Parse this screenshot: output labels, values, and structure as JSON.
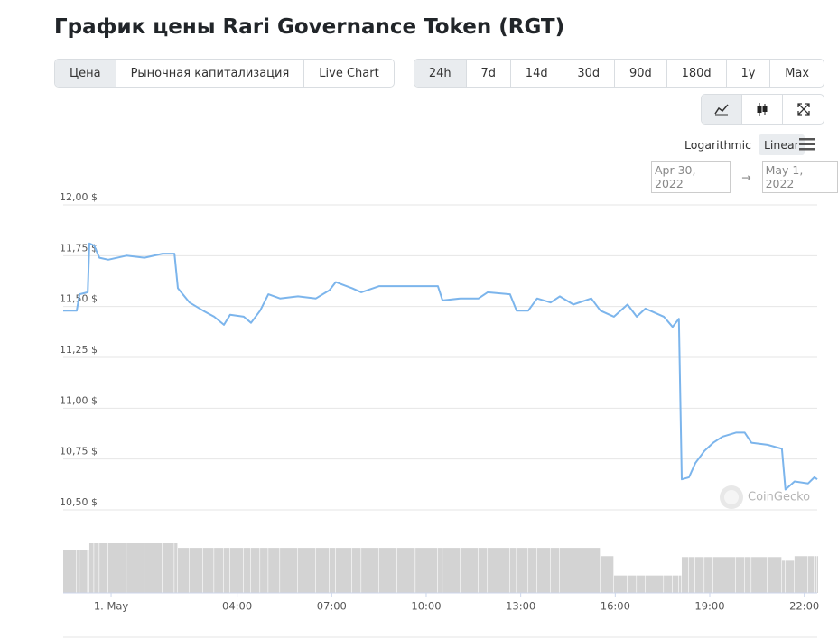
{
  "title": "График цены Rari Governance Token (RGT)",
  "tabs": [
    "Цена",
    "Рыночная капитализация",
    "Live Chart"
  ],
  "ranges": [
    "24h",
    "7d",
    "14d",
    "30d",
    "90d",
    "180d",
    "1y",
    "Max"
  ],
  "scale_options": [
    "Logarithmic",
    "Linear"
  ],
  "date_range": {
    "from": "Apr 30, 2022",
    "separator": "→",
    "to": "May 1, 2022"
  },
  "watermark": "CoinGecko",
  "chart_data": {
    "type": "line",
    "x": [
      -1.52,
      -1.09,
      -1.0,
      -0.74,
      -0.69,
      -0.54,
      -0.37,
      -0.09,
      0.49,
      1.06,
      1.63,
      2.01,
      2.12,
      2.49,
      2.92,
      3.27,
      3.58,
      3.78,
      4.21,
      4.44,
      4.73,
      4.99,
      5.36,
      5.93,
      6.5,
      6.93,
      7.13,
      7.65,
      7.94,
      8.51,
      9.08,
      9.66,
      10.37,
      10.52,
      11.09,
      11.66,
      11.95,
      12.66,
      12.87,
      13.24,
      13.52,
      13.95,
      14.24,
      14.67,
      15.24,
      15.53,
      15.96,
      16.39,
      16.68,
      16.96,
      17.54,
      17.82,
      18.02,
      18.11,
      18.34,
      18.54,
      18.83,
      19.11,
      19.4,
      19.83,
      20.11,
      20.32,
      20.83,
      21.29,
      21.4,
      21.69,
      22.12,
      22.32,
      22.41
    ],
    "values": [
      11.48,
      11.48,
      11.56,
      11.57,
      11.81,
      11.8,
      11.74,
      11.73,
      11.75,
      11.74,
      11.76,
      11.76,
      11.59,
      11.52,
      11.48,
      11.45,
      11.41,
      11.46,
      11.45,
      11.42,
      11.48,
      11.56,
      11.54,
      11.55,
      11.54,
      11.58,
      11.62,
      11.59,
      11.57,
      11.6,
      11.6,
      11.6,
      11.6,
      11.53,
      11.54,
      11.54,
      11.57,
      11.56,
      11.48,
      11.48,
      11.54,
      11.52,
      11.55,
      11.51,
      11.54,
      11.48,
      11.45,
      11.51,
      11.45,
      11.49,
      11.45,
      11.4,
      11.44,
      10.65,
      10.66,
      10.73,
      10.79,
      10.83,
      10.86,
      10.88,
      10.88,
      10.83,
      10.82,
      10.8,
      10.6,
      10.64,
      10.63,
      10.66,
      10.65
    ],
    "color": "#7cb5ec",
    "volume": [
      47,
      47,
      47,
      47,
      54,
      54,
      54,
      54,
      54,
      54,
      54,
      54,
      49,
      49,
      49,
      49,
      49,
      49,
      49,
      49,
      49,
      49,
      49,
      49,
      49,
      49,
      49,
      49,
      49,
      49,
      49,
      49,
      49,
      49,
      49,
      49,
      49,
      49,
      49,
      49,
      49,
      49,
      49,
      49,
      49,
      40,
      19,
      19,
      19,
      19,
      19,
      19,
      19,
      39,
      39,
      39,
      39,
      39,
      39,
      39,
      39,
      39,
      39,
      35,
      35,
      40,
      40,
      40,
      40
    ],
    "volume_color": "#d3d3d3",
    "xlim": [
      -1.52,
      22.41
    ],
    "ylim": [
      10.5,
      12
    ],
    "xticks": [
      {
        "value": 0,
        "label": "1. May"
      },
      {
        "value": 4,
        "label": "04:00"
      },
      {
        "value": 7,
        "label": "07:00"
      },
      {
        "value": 10,
        "label": "10:00"
      },
      {
        "value": 13,
        "label": "13:00"
      },
      {
        "value": 16,
        "label": "16:00"
      },
      {
        "value": 19,
        "label": "19:00"
      },
      {
        "value": 22,
        "label": "22:00"
      }
    ],
    "yticks": [
      {
        "value": 10.5,
        "label": "10,50 $"
      },
      {
        "value": 10.75,
        "label": "10,75 $"
      },
      {
        "value": 11,
        "label": "11,00 $"
      },
      {
        "value": 11.25,
        "label": "11,25 $"
      },
      {
        "value": 11.5,
        "label": "11,50 $"
      },
      {
        "value": 11.75,
        "label": "11,75 $"
      },
      {
        "value": 12,
        "label": "12,00 $"
      }
    ],
    "grid": true
  }
}
